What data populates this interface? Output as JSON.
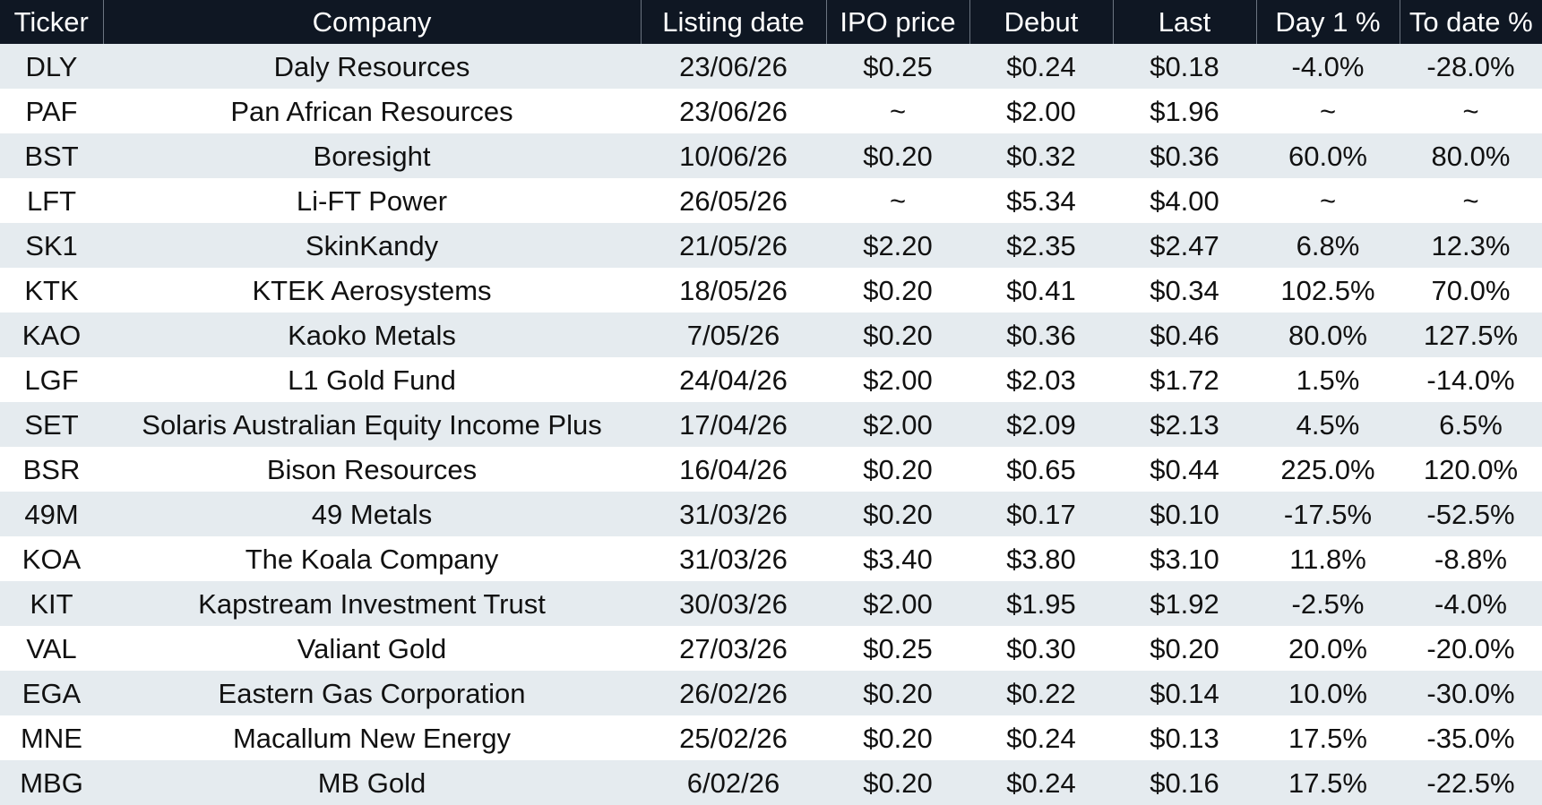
{
  "headers": {
    "ticker": "Ticker",
    "company": "Company",
    "listing_date": "Listing date",
    "ipo_price": "IPO price",
    "debut": "Debut",
    "last": "Last",
    "day1": "Day 1 %",
    "to_date": "To date %"
  },
  "colors": {
    "header_bg": "#0f1723",
    "row_alt_bg": "#e5ebef",
    "positive": "#4aa83a",
    "negative": "#e8211f"
  },
  "rows": [
    {
      "ticker": "DLY",
      "company": "Daly Resources",
      "listing_date": "23/06/26",
      "ipo_price": "$0.25",
      "debut": "$0.24",
      "last": "$0.18",
      "day1": "-4.0%",
      "day1_sign": "neg",
      "to_date": "-28.0%",
      "to_date_sign": "neg"
    },
    {
      "ticker": "PAF",
      "company": "Pan African Resources",
      "listing_date": "23/06/26",
      "ipo_price": "~",
      "debut": "$2.00",
      "last": "$1.96",
      "day1": "~",
      "day1_sign": "na",
      "to_date": "~",
      "to_date_sign": "na"
    },
    {
      "ticker": "BST",
      "company": "Boresight",
      "listing_date": "10/06/26",
      "ipo_price": "$0.20",
      "debut": "$0.32",
      "last": "$0.36",
      "day1": "60.0%",
      "day1_sign": "pos",
      "to_date": "80.0%",
      "to_date_sign": "pos"
    },
    {
      "ticker": "LFT",
      "company": "Li-FT Power",
      "listing_date": "26/05/26",
      "ipo_price": "~",
      "debut": "$5.34",
      "last": "$4.00",
      "day1": "~",
      "day1_sign": "na",
      "to_date": "~",
      "to_date_sign": "na"
    },
    {
      "ticker": "SK1",
      "company": "SkinKandy",
      "listing_date": "21/05/26",
      "ipo_price": "$2.20",
      "debut": "$2.35",
      "last": "$2.47",
      "day1": "6.8%",
      "day1_sign": "pos",
      "to_date": "12.3%",
      "to_date_sign": "pos"
    },
    {
      "ticker": "KTK",
      "company": "KTEK Aerosystems",
      "listing_date": "18/05/26",
      "ipo_price": "$0.20",
      "debut": "$0.41",
      "last": "$0.34",
      "day1": "102.5%",
      "day1_sign": "pos",
      "to_date": "70.0%",
      "to_date_sign": "pos"
    },
    {
      "ticker": "KAO",
      "company": "Kaoko Metals",
      "listing_date": "7/05/26",
      "ipo_price": "$0.20",
      "debut": "$0.36",
      "last": "$0.46",
      "day1": "80.0%",
      "day1_sign": "pos",
      "to_date": "127.5%",
      "to_date_sign": "pos"
    },
    {
      "ticker": "LGF",
      "company": "L1 Gold Fund",
      "listing_date": "24/04/26",
      "ipo_price": "$2.00",
      "debut": "$2.03",
      "last": "$1.72",
      "day1": "1.5%",
      "day1_sign": "pos",
      "to_date": "-14.0%",
      "to_date_sign": "neg"
    },
    {
      "ticker": "SET",
      "company": "Solaris Australian Equity Income Plus",
      "listing_date": "17/04/26",
      "ipo_price": "$2.00",
      "debut": "$2.09",
      "last": "$2.13",
      "day1": "4.5%",
      "day1_sign": "pos",
      "to_date": "6.5%",
      "to_date_sign": "pos"
    },
    {
      "ticker": "BSR",
      "company": "Bison Resources",
      "listing_date": "16/04/26",
      "ipo_price": "$0.20",
      "debut": "$0.65",
      "last": "$0.44",
      "day1": "225.0%",
      "day1_sign": "pos",
      "to_date": "120.0%",
      "to_date_sign": "pos"
    },
    {
      "ticker": "49M",
      "company": "49 Metals",
      "listing_date": "31/03/26",
      "ipo_price": "$0.20",
      "debut": "$0.17",
      "last": "$0.10",
      "day1": "-17.5%",
      "day1_sign": "neg",
      "to_date": "-52.5%",
      "to_date_sign": "neg"
    },
    {
      "ticker": "KOA",
      "company": "The Koala Company",
      "listing_date": "31/03/26",
      "ipo_price": "$3.40",
      "debut": "$3.80",
      "last": "$3.10",
      "day1": "11.8%",
      "day1_sign": "pos",
      "to_date": "-8.8%",
      "to_date_sign": "neg"
    },
    {
      "ticker": "KIT",
      "company": "Kapstream Investment Trust",
      "listing_date": "30/03/26",
      "ipo_price": "$2.00",
      "debut": "$1.95",
      "last": "$1.92",
      "day1": "-2.5%",
      "day1_sign": "neg",
      "to_date": "-4.0%",
      "to_date_sign": "neg"
    },
    {
      "ticker": "VAL",
      "company": "Valiant Gold",
      "listing_date": "27/03/26",
      "ipo_price": "$0.25",
      "debut": "$0.30",
      "last": "$0.20",
      "day1": "20.0%",
      "day1_sign": "pos",
      "to_date": "-20.0%",
      "to_date_sign": "neg"
    },
    {
      "ticker": "EGA",
      "company": "Eastern Gas Corporation",
      "listing_date": "26/02/26",
      "ipo_price": "$0.20",
      "debut": "$0.22",
      "last": "$0.14",
      "day1": "10.0%",
      "day1_sign": "pos",
      "to_date": "-30.0%",
      "to_date_sign": "neg"
    },
    {
      "ticker": "MNE",
      "company": "Macallum New Energy",
      "listing_date": "25/02/26",
      "ipo_price": "$0.20",
      "debut": "$0.24",
      "last": "$0.13",
      "day1": "17.5%",
      "day1_sign": "pos",
      "to_date": "-35.0%",
      "to_date_sign": "neg"
    },
    {
      "ticker": "MBG",
      "company": "MB Gold",
      "listing_date": "6/02/26",
      "ipo_price": "$0.20",
      "debut": "$0.24",
      "last": "$0.16",
      "day1": "17.5%",
      "day1_sign": "pos",
      "to_date": "-22.5%",
      "to_date_sign": "neg"
    }
  ]
}
